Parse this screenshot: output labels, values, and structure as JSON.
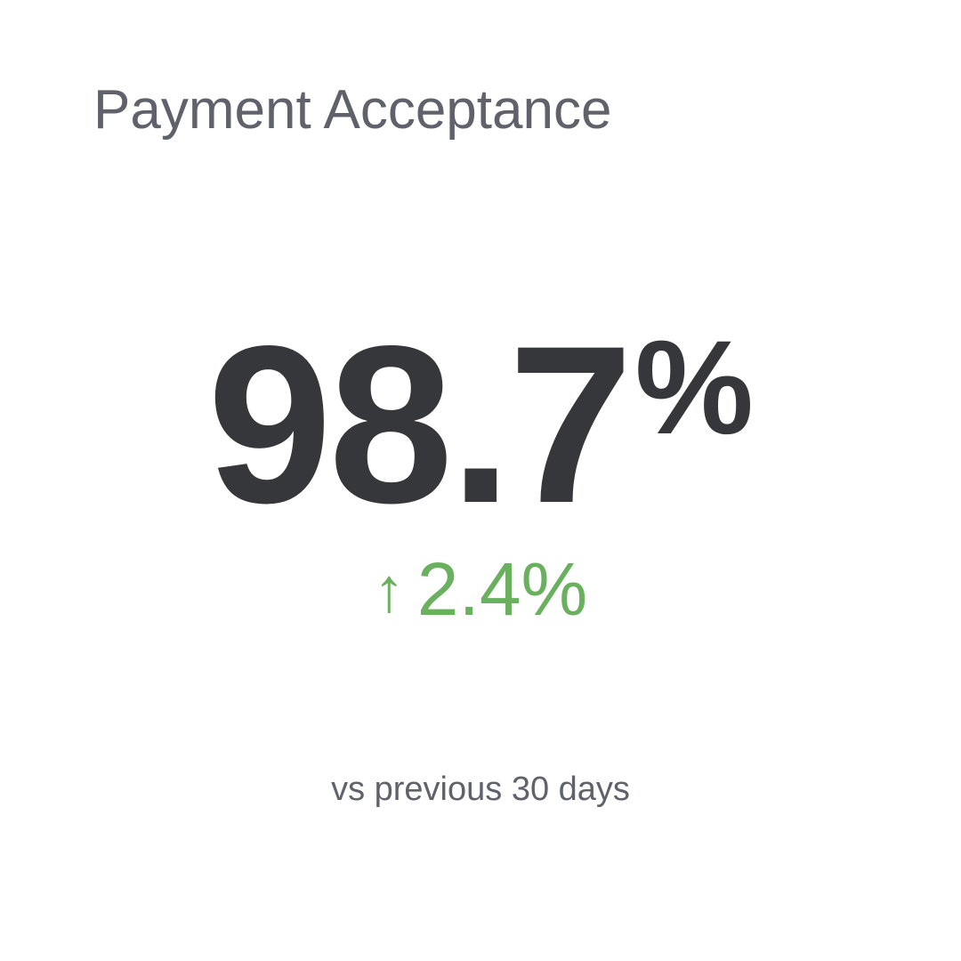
{
  "card": {
    "title": "Payment Acceptance",
    "value": "98.7",
    "value_unit": "%",
    "delta": {
      "direction": "up",
      "arrow_icon": "↑",
      "value": "2.4%",
      "color": "#6ab05f"
    },
    "comparison_label": "vs previous 30 days"
  }
}
